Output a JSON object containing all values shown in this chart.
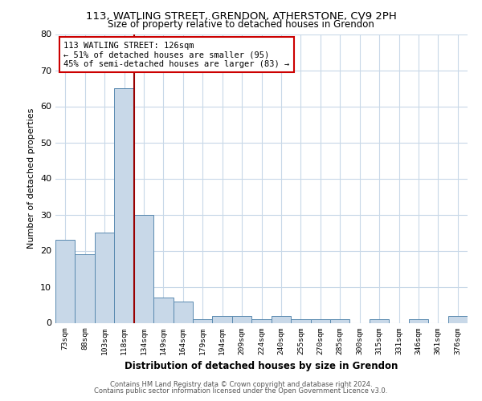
{
  "title1": "113, WATLING STREET, GRENDON, ATHERSTONE, CV9 2PH",
  "title2": "Size of property relative to detached houses in Grendon",
  "xlabel": "Distribution of detached houses by size in Grendon",
  "ylabel": "Number of detached properties",
  "footer1": "Contains HM Land Registry data © Crown copyright and database right 2024.",
  "footer2": "Contains public sector information licensed under the Open Government Licence v3.0.",
  "annotation_line1": "113 WATLING STREET: 126sqm",
  "annotation_line2": "← 51% of detached houses are smaller (95)",
  "annotation_line3": "45% of semi-detached houses are larger (83) →",
  "categories": [
    "73sqm",
    "88sqm",
    "103sqm",
    "118sqm",
    "134sqm",
    "149sqm",
    "164sqm",
    "179sqm",
    "194sqm",
    "209sqm",
    "224sqm",
    "240sqm",
    "255sqm",
    "270sqm",
    "285sqm",
    "300sqm",
    "315sqm",
    "331sqm",
    "346sqm",
    "361sqm",
    "376sqm"
  ],
  "values": [
    23,
    19,
    25,
    65,
    30,
    7,
    6,
    1,
    2,
    2,
    1,
    2,
    1,
    1,
    1,
    0,
    1,
    0,
    1,
    0,
    2
  ],
  "bar_color": "#c8d8e8",
  "bar_edge_color": "#5a8ab0",
  "ylim": [
    0,
    80
  ],
  "yticks": [
    0,
    10,
    20,
    30,
    40,
    50,
    60,
    70,
    80
  ],
  "background_color": "#ffffff",
  "grid_color": "#c8d8e8",
  "red_line_color": "#990000",
  "annotation_box_color": "#cc0000"
}
